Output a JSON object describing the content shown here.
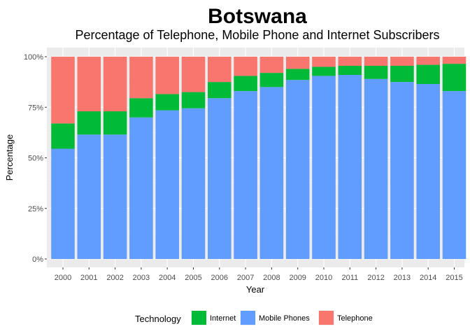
{
  "chart_data": {
    "type": "bar",
    "stacked": true,
    "title": "Botswana",
    "subtitle": "Percentage of Telephone, Mobile Phone and Internet Subscribers",
    "xlabel": "Year",
    "ylabel": "Percentage",
    "ylim": [
      0,
      100
    ],
    "yticks": [
      "0%",
      "25%",
      "50%",
      "75%",
      "100%"
    ],
    "ytick_values": [
      0,
      25,
      50,
      75,
      100
    ],
    "grid": true,
    "legend": {
      "title": "Technology",
      "placement": "bottom"
    },
    "categories": [
      "2000",
      "2001",
      "2002",
      "2003",
      "2004",
      "2005",
      "2006",
      "2007",
      "2008",
      "2009",
      "2010",
      "2011",
      "2012",
      "2013",
      "2014",
      "2015"
    ],
    "series": [
      {
        "name": "Mobile Phones",
        "color": "#619CFF",
        "values": [
          54.5,
          61.5,
          61.5,
          70,
          73.5,
          74.5,
          79.5,
          83,
          85,
          88.5,
          90.5,
          91,
          89,
          87.5,
          86.5,
          83
        ]
      },
      {
        "name": "Internet",
        "color": "#00BA38",
        "values": [
          12.5,
          11.5,
          11.5,
          9.5,
          8,
          8,
          8,
          7.5,
          7,
          5.5,
          4.5,
          4.5,
          6.5,
          8,
          9.5,
          13.5
        ]
      },
      {
        "name": "Telephone",
        "color": "#F8766D",
        "values": [
          33,
          27,
          27,
          20.5,
          18.5,
          17.5,
          12.5,
          9.5,
          8,
          6,
          5,
          4.5,
          4.5,
          4.5,
          4,
          3.5
        ]
      }
    ],
    "legend_order": [
      "Internet",
      "Mobile Phones",
      "Telephone"
    ]
  }
}
